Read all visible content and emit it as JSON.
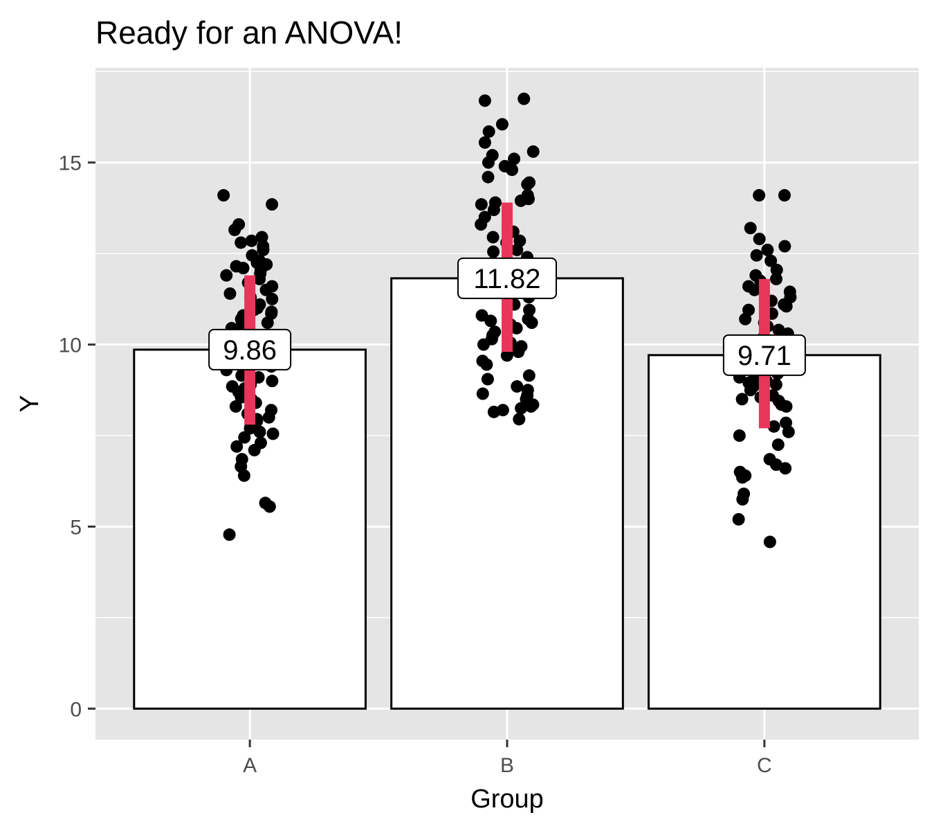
{
  "chart_data": {
    "type": "bar",
    "title": "Ready for an ANOVA!",
    "xlabel": "Group",
    "ylabel": "Y",
    "categories": [
      "A",
      "B",
      "C"
    ],
    "values": [
      9.86,
      11.82,
      9.71
    ],
    "labels": [
      "9.86",
      "11.82",
      "9.71"
    ],
    "error_bars": [
      {
        "low": 7.8,
        "high": 11.9
      },
      {
        "low": 9.8,
        "high": 13.9
      },
      {
        "low": 7.7,
        "high": 11.8
      }
    ],
    "ylim": [
      -0.85,
      17.6
    ],
    "yticks": [
      0,
      5,
      10,
      15
    ],
    "ytick_labels": [
      "0",
      "5",
      "10",
      "15"
    ],
    "grid": true,
    "colors": {
      "panel": "#e5e5e5",
      "grid": "#ffffff",
      "bar_fill": "#ffffff",
      "bar_stroke": "#000000",
      "points": "#000000",
      "error_bar": "#e8365a",
      "tick_text": "#4d4d4d"
    },
    "points": {
      "A": [
        14.1,
        13.85,
        13.3,
        13.15,
        12.95,
        12.85,
        12.8,
        12.7,
        12.6,
        12.45,
        12.3,
        12.25,
        12.2,
        12.15,
        12.1,
        12.05,
        11.95,
        11.9,
        11.8,
        11.7,
        11.6,
        11.5,
        11.4,
        11.3,
        11.25,
        11.1,
        11.0,
        10.95,
        10.9,
        10.85,
        10.8,
        10.7,
        10.6,
        10.5,
        10.45,
        10.35,
        10.3,
        10.25,
        10.15,
        10.1,
        10.05,
        10.0,
        9.9,
        9.85,
        9.8,
        9.7,
        9.65,
        9.55,
        9.4,
        9.3,
        9.2,
        9.15,
        9.1,
        9.0,
        8.9,
        8.85,
        8.8,
        8.7,
        8.65,
        8.6,
        8.55,
        8.5,
        8.4,
        8.3,
        8.2,
        8.1,
        8.0,
        7.95,
        7.9,
        7.8,
        7.7,
        7.6,
        7.55,
        7.45,
        7.3,
        7.2,
        7.1,
        6.85,
        6.65,
        6.4,
        5.65,
        5.55,
        4.78
      ],
      "B": [
        16.75,
        16.7,
        16.05,
        15.85,
        15.55,
        15.3,
        15.2,
        15.1,
        15.0,
        14.9,
        14.8,
        14.6,
        14.45,
        14.4,
        14.1,
        14.05,
        14.0,
        13.95,
        13.9,
        13.85,
        13.7,
        13.5,
        13.3,
        13.1,
        12.95,
        12.85,
        12.8,
        12.6,
        12.55,
        12.4,
        12.25,
        12.1,
        12.0,
        11.9,
        11.7,
        11.5,
        11.3,
        11.1,
        10.95,
        10.8,
        10.7,
        10.65,
        10.6,
        10.55,
        10.45,
        10.35,
        10.25,
        10.15,
        10.05,
        10.0,
        9.95,
        9.85,
        9.8,
        9.7,
        9.55,
        9.45,
        9.15,
        9.05,
        8.85,
        8.75,
        8.65,
        8.6,
        8.5,
        8.35,
        8.3,
        8.25,
        8.2,
        8.15,
        7.95
      ],
      "C": [
        14.1,
        14.1,
        13.2,
        12.9,
        12.7,
        12.6,
        12.45,
        12.3,
        12.05,
        11.9,
        11.8,
        11.75,
        11.6,
        11.5,
        11.45,
        11.3,
        11.2,
        11.1,
        11.05,
        10.95,
        10.85,
        10.7,
        10.6,
        10.5,
        10.4,
        10.3,
        10.2,
        10.1,
        10.05,
        9.95,
        9.85,
        9.7,
        9.6,
        9.55,
        9.4,
        9.3,
        9.2,
        9.1,
        9.05,
        9.0,
        8.95,
        8.9,
        8.85,
        8.75,
        8.6,
        8.55,
        8.5,
        8.45,
        8.35,
        8.3,
        7.85,
        7.75,
        7.6,
        7.5,
        7.25,
        6.85,
        6.7,
        6.6,
        6.5,
        6.4,
        6.35,
        5.9,
        5.75,
        5.2,
        4.58
      ]
    }
  }
}
